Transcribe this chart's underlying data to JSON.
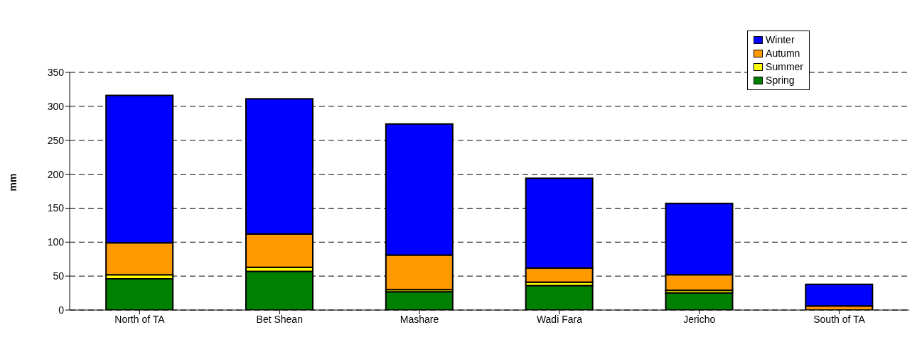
{
  "chart_data": {
    "type": "bar",
    "stacked": true,
    "ylabel": "mm",
    "categories": [
      "North of TA",
      "Bet Shean",
      "Mashare",
      "Wadi Fara",
      "Jericho",
      "South of TA"
    ],
    "series": [
      {
        "name": "Spring",
        "color": "#008000",
        "values": [
          46,
          57,
          27,
          36,
          25,
          null
        ]
      },
      {
        "name": "Summer",
        "color": "#ffff00",
        "values": [
          6,
          6,
          3,
          5,
          4,
          null
        ]
      },
      {
        "name": "Autumn",
        "color": "#ff9900",
        "values": [
          47,
          49,
          51,
          21,
          23,
          6
        ]
      },
      {
        "name": "Winter",
        "color": "#0000ff",
        "values": [
          217,
          199,
          193,
          132,
          105,
          32
        ]
      }
    ],
    "ylim": [
      0,
      350
    ],
    "yticks": [
      0,
      50,
      100,
      150,
      200,
      250,
      300,
      350
    ],
    "grid": "y",
    "legend": "top right"
  }
}
